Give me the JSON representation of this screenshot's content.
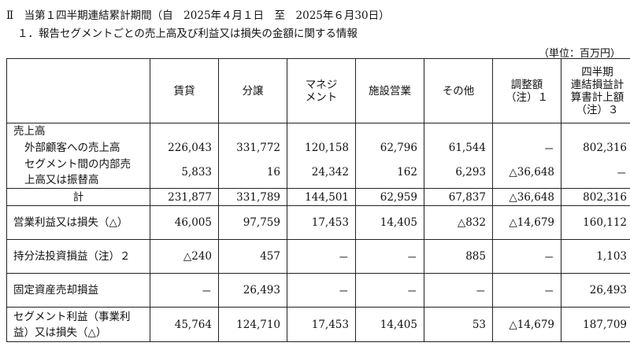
{
  "heading": {
    "line1": "Ⅱ　当第１四半期連結累計期間（自　2025年４月１日　至　2025年６月30日）",
    "line2": "１．報告セグメントごとの売上高及び利益又は損失の金額に関する情報",
    "unit": "（単位：百万円）"
  },
  "columns": [
    "",
    "賃貸",
    "分譲",
    "マネジ\nメント",
    "施設営業",
    "その他",
    "調整額\n（注）１",
    "四半期\n連結損益計\n算書計上額\n（注）３"
  ],
  "rows": {
    "sales_header": "売上高",
    "external_sales": {
      "label": "外部顧客への売上高",
      "values": [
        "226,043",
        "331,772",
        "120,158",
        "62,796",
        "61,544",
        "－",
        "802,316"
      ]
    },
    "internal_sales": {
      "label_line1": "セグメント間の内部売",
      "label_line2": "上高又は振替高",
      "values": [
        "5,833",
        "16",
        "24,342",
        "162",
        "6,293",
        "△36,648",
        "－"
      ]
    },
    "total": {
      "label": "計",
      "values": [
        "231,877",
        "331,789",
        "144,501",
        "62,959",
        "67,837",
        "△36,648",
        "802,316"
      ]
    },
    "operating_profit": {
      "label": "営業利益又は損失（△）",
      "values": [
        "46,005",
        "97,759",
        "17,453",
        "14,405",
        "△832",
        "△14,679",
        "160,112"
      ]
    },
    "equity_method": {
      "label": "持分法投資損益（注）２",
      "values": [
        "△240",
        "457",
        "－",
        "－",
        "885",
        "－",
        "1,103"
      ]
    },
    "asset_sale": {
      "label": "固定資産売却損益",
      "values": [
        "－",
        "26,493",
        "－",
        "－",
        "－",
        "－",
        "26,493"
      ]
    },
    "segment_profit": {
      "label_line1": "セグメント利益（事業利",
      "label_line2": "益）又は損失（△）",
      "values": [
        "45,764",
        "124,710",
        "17,453",
        "14,405",
        "53",
        "△14,679",
        "187,709"
      ]
    }
  }
}
